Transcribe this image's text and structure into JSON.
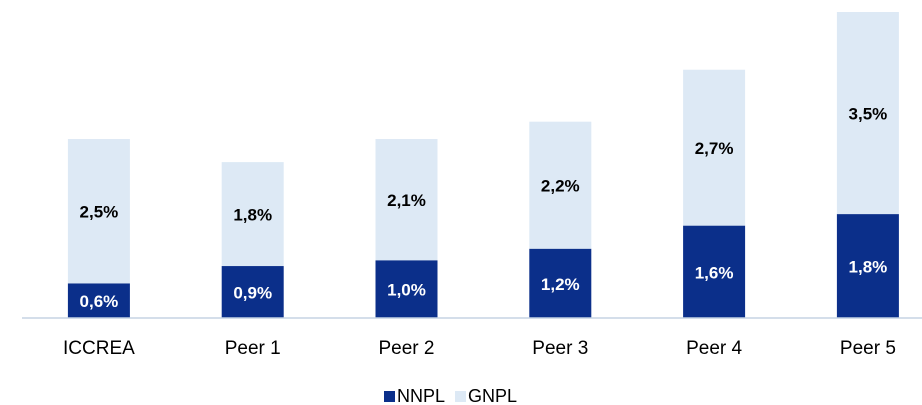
{
  "chart_data": {
    "type": "stacked_bar",
    "categories": [
      "ICCREA",
      "Peer 1",
      "Peer 2",
      "Peer 3",
      "Peer 4",
      "Peer 5"
    ],
    "series": [
      {
        "name": "NNPL",
        "color": "#0b2f8a",
        "values": [
          0.6,
          0.9,
          1.0,
          1.2,
          1.6,
          1.8
        ],
        "value_labels": [
          "0,6%",
          "0,9%",
          "1,0%",
          "1,2%",
          "1,6%",
          "1,8%"
        ]
      },
      {
        "name": "GNPL",
        "color": "#dde9f5",
        "values": [
          2.5,
          1.8,
          2.1,
          2.2,
          2.7,
          3.5
        ],
        "value_labels": [
          "2,5%",
          "1,8%",
          "2,1%",
          "2,2%",
          "2,7%",
          "3,5%"
        ]
      }
    ]
  }
}
